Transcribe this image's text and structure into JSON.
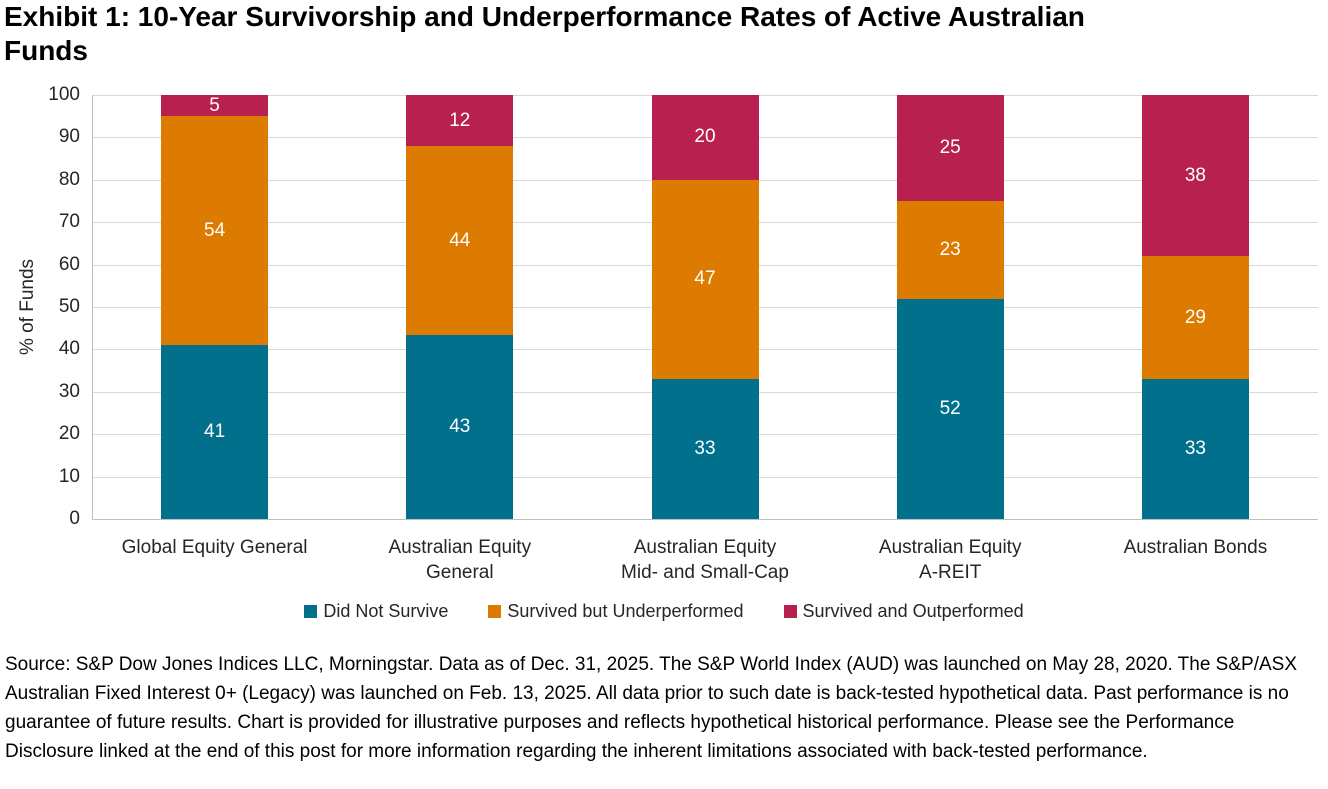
{
  "header": {
    "title_line1": "Exhibit 1: 10-Year Survivorship and Underperformance Rates of Active Australian",
    "title_line2": "Funds"
  },
  "chart_data": {
    "type": "bar",
    "stacked": true,
    "title": "Exhibit 1: 10-Year Survivorship and Underperformance Rates of Active Australian Funds",
    "categories": [
      "Global Equity General",
      "Australian Equity\nGeneral",
      "Australian Equity\nMid- and Small-Cap",
      "Australian Equity\nA-REIT",
      "Australian Bonds"
    ],
    "series": [
      {
        "name": "Did Not Survive",
        "color": "#00708C",
        "values": [
          41,
          43,
          33,
          52,
          33
        ]
      },
      {
        "name": "Survived but Underperformed",
        "color": "#DD7A00",
        "values": [
          54,
          44,
          47,
          23,
          29
        ]
      },
      {
        "name": "Survived and Outperformed",
        "color": "#B8204F",
        "values": [
          5,
          12,
          20,
          25,
          38
        ]
      }
    ],
    "xlabel": "",
    "ylabel": "% of Funds",
    "ylim": [
      0,
      100
    ],
    "yticks": [
      0,
      10,
      20,
      30,
      40,
      50,
      60,
      70,
      80,
      90,
      100
    ],
    "grid": true,
    "legend_position": "bottom"
  },
  "source": {
    "text": "Source: S&P Dow Jones Indices LLC, Morningstar. Data as of Dec. 31, 2025. The S&P World Index (AUD) was launched on May 28, 2020. The S&P/ASX Australian Fixed Interest 0+ (Legacy) was launched on Feb. 13, 2025. All data prior to such date is back-tested hypothetical data. Past performance is no guarantee of future results. Chart is provided for illustrative purposes and reflects hypothetical historical performance. Please see the Performance Disclosure linked at the end of this post for more information regarding the inherent limitations associated with back-tested performance."
  }
}
